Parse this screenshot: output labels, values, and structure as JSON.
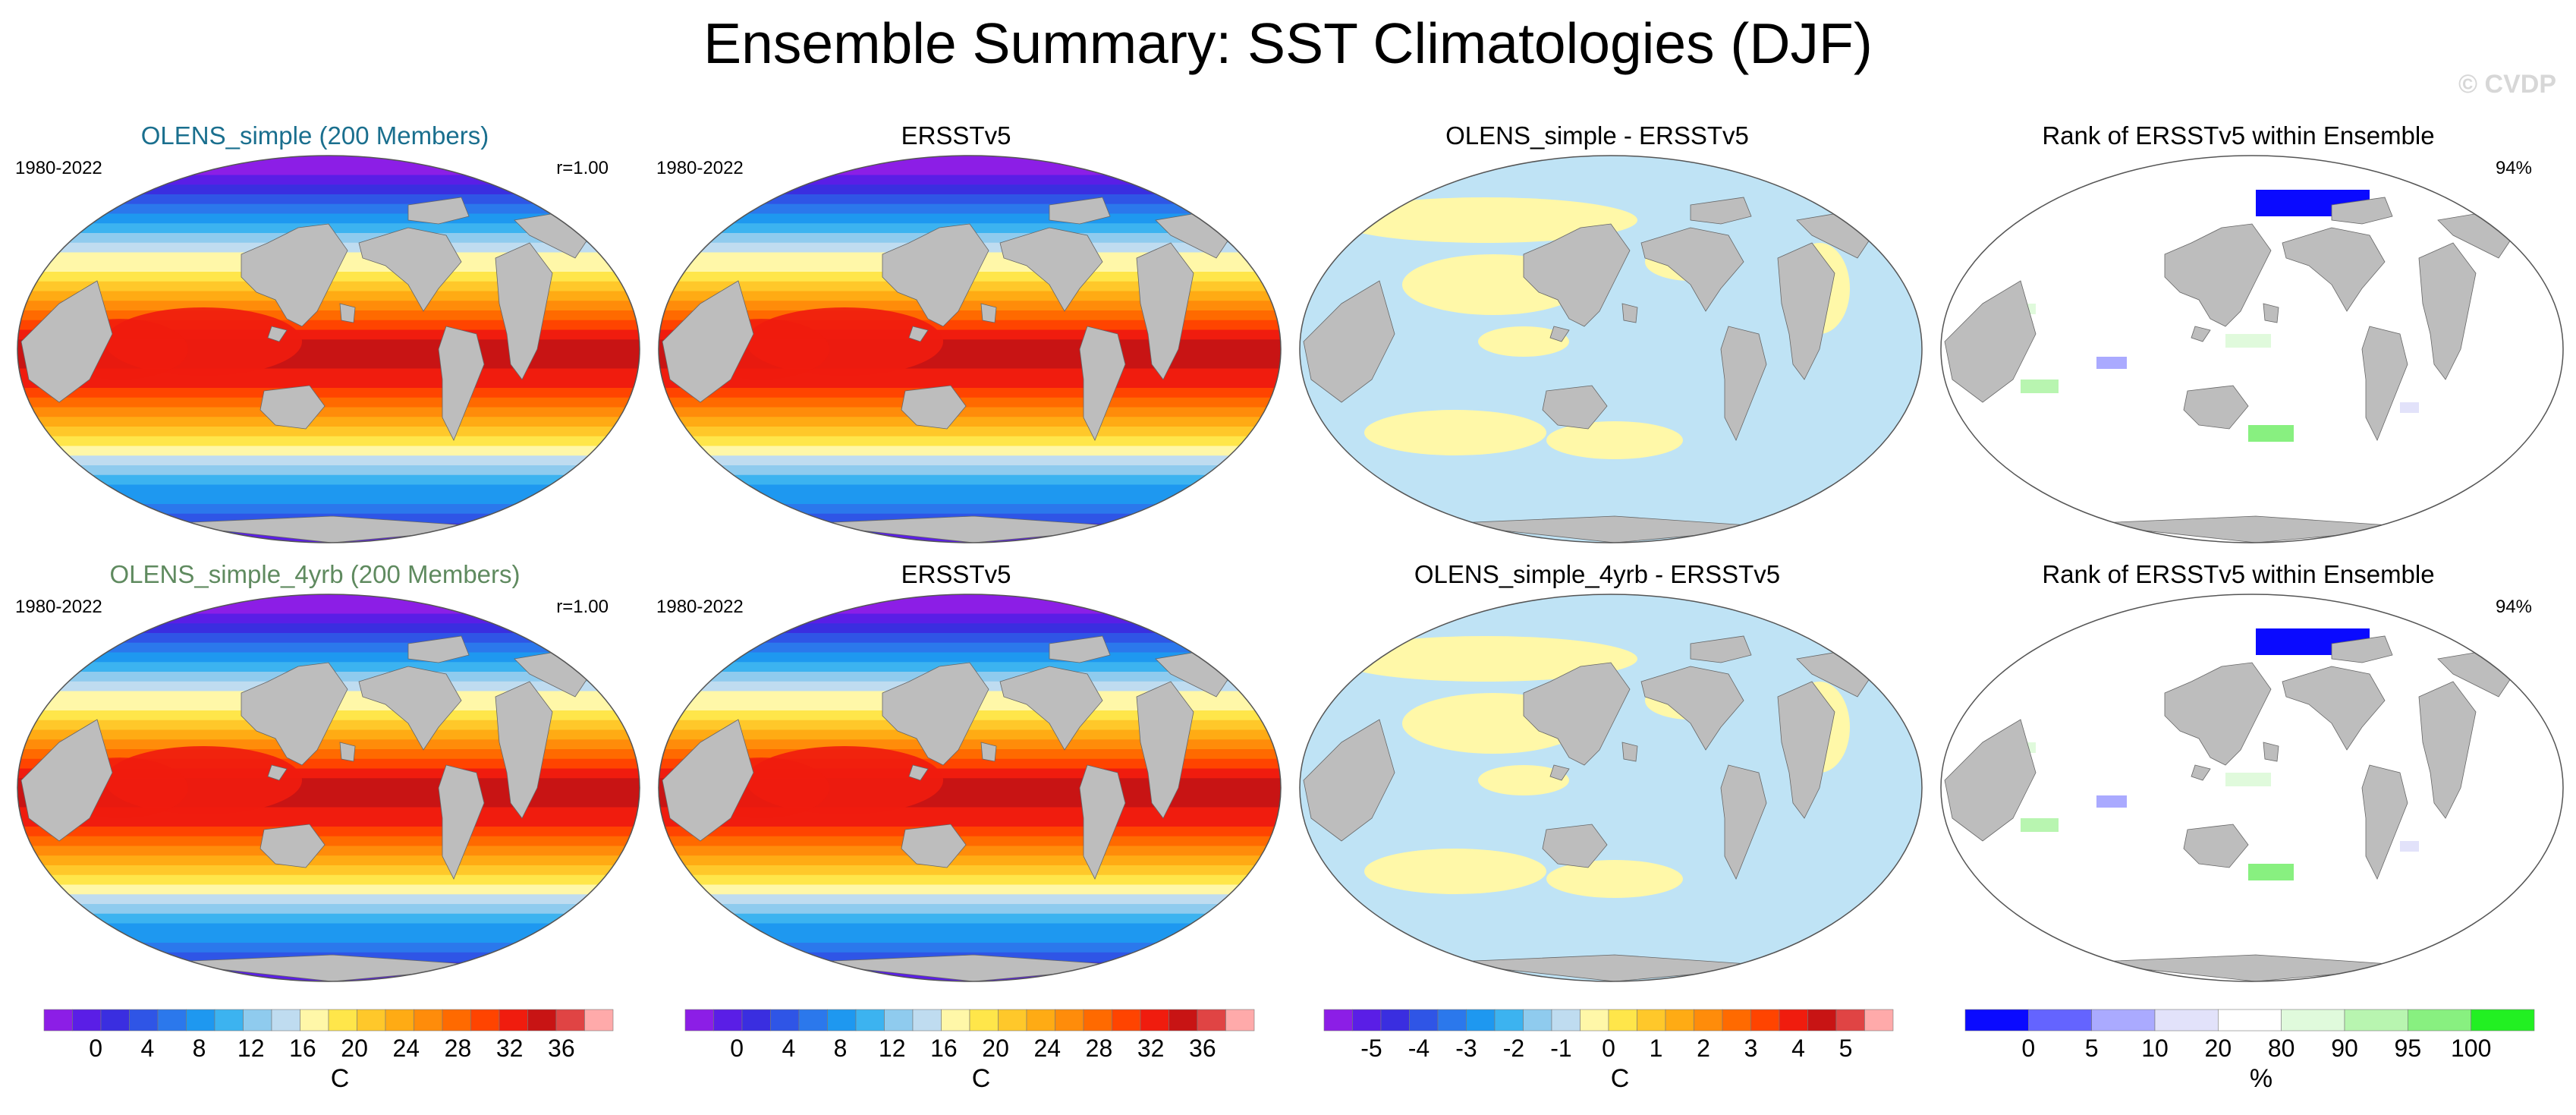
{
  "header": {
    "title": "Ensemble Summary: SST Climatologies (DJF)",
    "watermark": "© CVDP"
  },
  "colors": {
    "land": "#bdbdbd",
    "ocean_outline": "#555555",
    "title_row1": "#1a6f8e",
    "title_row2": "#5f8a5f"
  },
  "panels": {
    "r1c1": {
      "title": "OLENS_simple (200 Members)",
      "left": "1980-2022",
      "right": "r=1.00",
      "kind": "sst"
    },
    "r1c2": {
      "title": "ERSSTv5",
      "left": "1980-2022",
      "right": "",
      "kind": "sst"
    },
    "r1c3": {
      "title": "OLENS_simple - ERSSTv5",
      "left": "",
      "right": "",
      "kind": "diff"
    },
    "r1c4": {
      "title": "Rank of ERSSTv5 within Ensemble",
      "left": "",
      "right": "94%",
      "kind": "rank"
    },
    "r2c1": {
      "title": "OLENS_simple_4yrb (200 Members)",
      "left": "1980-2022",
      "right": "r=1.00",
      "kind": "sst"
    },
    "r2c2": {
      "title": "ERSSTv5",
      "left": "1980-2022",
      "right": "",
      "kind": "sst"
    },
    "r2c3": {
      "title": "OLENS_simple_4yrb - ERSSTv5",
      "left": "",
      "right": "",
      "kind": "diff"
    },
    "r2c4": {
      "title": "Rank of ERSSTv5 within Ensemble",
      "left": "",
      "right": "94%",
      "kind": "rank"
    }
  },
  "chart_data": [
    {
      "type": "heatmap",
      "title": "OLENS_simple (200 Members)",
      "period": "1980-2022",
      "pattern_correlation": "r=1.00",
      "units": "C",
      "levels": [
        0,
        4,
        8,
        12,
        16,
        20,
        24,
        28,
        32,
        36
      ]
    },
    {
      "type": "heatmap",
      "title": "ERSSTv5",
      "period": "1980-2022",
      "units": "C",
      "levels": [
        0,
        4,
        8,
        12,
        16,
        20,
        24,
        28,
        32,
        36
      ]
    },
    {
      "type": "heatmap",
      "title": "OLENS_simple - ERSSTv5",
      "units": "C",
      "levels": [
        -5,
        -4,
        -3,
        -2,
        -1,
        0,
        1,
        2,
        3,
        4,
        5
      ]
    },
    {
      "type": "heatmap",
      "title": "Rank of ERSSTv5 within Ensemble",
      "summary": "94%",
      "units": "%",
      "levels": [
        0,
        5,
        10,
        20,
        80,
        90,
        95,
        100
      ]
    },
    {
      "type": "heatmap",
      "title": "OLENS_simple_4yrb (200 Members)",
      "period": "1980-2022",
      "pattern_correlation": "r=1.00",
      "units": "C",
      "levels": [
        0,
        4,
        8,
        12,
        16,
        20,
        24,
        28,
        32,
        36
      ]
    },
    {
      "type": "heatmap",
      "title": "ERSSTv5",
      "period": "1980-2022",
      "units": "C",
      "levels": [
        0,
        4,
        8,
        12,
        16,
        20,
        24,
        28,
        32,
        36
      ]
    },
    {
      "type": "heatmap",
      "title": "OLENS_simple_4yrb - ERSSTv5",
      "units": "C",
      "levels": [
        -5,
        -4,
        -3,
        -2,
        -1,
        0,
        1,
        2,
        3,
        4,
        5
      ]
    },
    {
      "type": "heatmap",
      "title": "Rank of ERSSTv5 within Ensemble",
      "summary": "94%",
      "units": "%",
      "levels": [
        0,
        5,
        10,
        20,
        80,
        90,
        95,
        100
      ]
    }
  ],
  "colorbars": {
    "sst1": {
      "unit": "C",
      "labels": [
        "0",
        "4",
        "8",
        "12",
        "16",
        "20",
        "24",
        "28",
        "32",
        "36"
      ],
      "colors": [
        "#8c1ee6",
        "#5a1ee6",
        "#3a2ee0",
        "#2f55e6",
        "#2b78ec",
        "#1e98f0",
        "#3cb3f0",
        "#8fcbee",
        "#bfdcf0",
        "#fff7a8",
        "#ffe64a",
        "#ffc82a",
        "#ffab14",
        "#ff8c0a",
        "#ff6a00",
        "#ff4400",
        "#f01c0e",
        "#c81414",
        "#e04444",
        "#ffaaaa"
      ]
    },
    "sst2": {
      "unit": "C",
      "labels": [
        "0",
        "4",
        "8",
        "12",
        "16",
        "20",
        "24",
        "28",
        "32",
        "36"
      ],
      "colors": [
        "#8c1ee6",
        "#5a1ee6",
        "#3a2ee0",
        "#2f55e6",
        "#2b78ec",
        "#1e98f0",
        "#3cb3f0",
        "#8fcbee",
        "#bfdcf0",
        "#fff7a8",
        "#ffe64a",
        "#ffc82a",
        "#ffab14",
        "#ff8c0a",
        "#ff6a00",
        "#ff4400",
        "#f01c0e",
        "#c81414",
        "#e04444",
        "#ffaaaa"
      ]
    },
    "diff": {
      "unit": "C",
      "labels": [
        "-5",
        "-4",
        "-3",
        "-2",
        "-1",
        "0",
        "1",
        "2",
        "3",
        "4",
        "5"
      ],
      "colors": [
        "#8c1ee6",
        "#5a1ee6",
        "#3a2ee0",
        "#2f55e6",
        "#2b78ec",
        "#1e98f0",
        "#3cb3f0",
        "#8fcbee",
        "#bfdcf0",
        "#fff7a8",
        "#ffe64a",
        "#ffc82a",
        "#ffab14",
        "#ff8c0a",
        "#ff6a00",
        "#ff4400",
        "#f01c0e",
        "#c81414",
        "#e04444",
        "#ffaaaa"
      ]
    },
    "rank": {
      "unit": "%",
      "labels": [
        "0",
        "5",
        "10",
        "20",
        "80",
        "90",
        "95",
        "100"
      ],
      "colors": [
        "#0a0aff",
        "#6464ff",
        "#aaaaff",
        "#e2e2fa",
        "#ffffff",
        "#e0fadc",
        "#b8f5b0",
        "#88f080",
        "#22f022"
      ]
    }
  }
}
